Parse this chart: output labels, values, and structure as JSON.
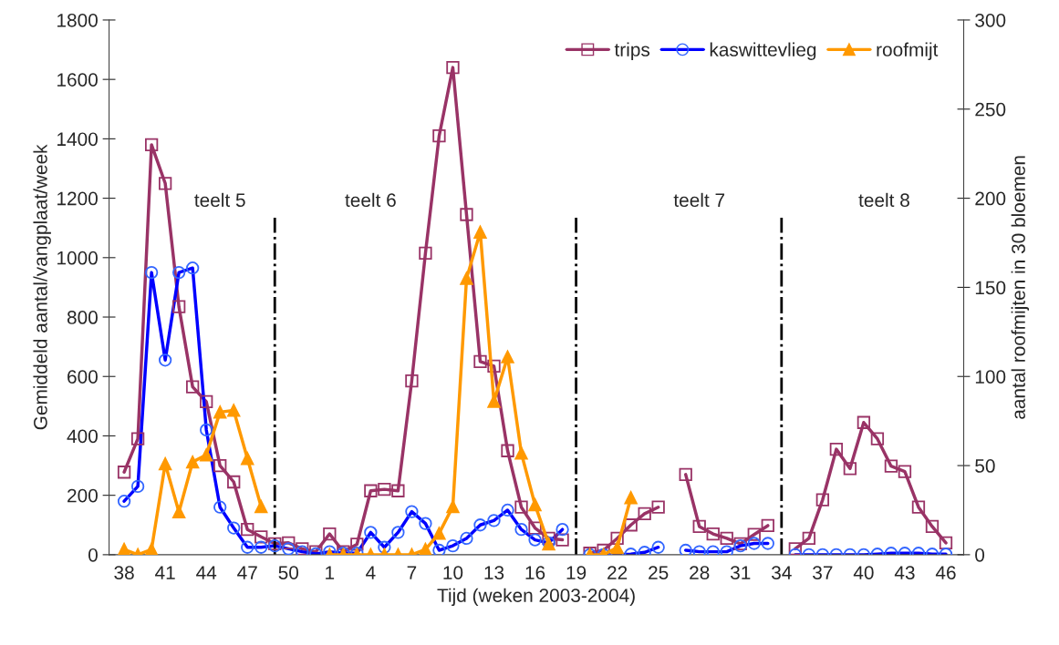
{
  "chart_data": {
    "type": "line",
    "xlabel": "Tijd (weken 2003-2004)",
    "ylabel": "Gemiddeld aantal/vangplaat/week",
    "y2label": "aantal roofmijten in 30 bloemen",
    "categories": [
      "38",
      null,
      null,
      "41",
      null,
      null,
      "44",
      null,
      null,
      "47",
      null,
      null,
      "50",
      null,
      null,
      "1",
      null,
      null,
      "4",
      null,
      null,
      "7",
      null,
      null,
      "10",
      null,
      null,
      "13",
      null,
      null,
      "16",
      null,
      null,
      "19",
      null,
      null,
      "22",
      null,
      null,
      "25",
      null,
      null,
      "28",
      null,
      null,
      "31",
      null,
      null,
      "34",
      null,
      null,
      "37",
      null,
      null,
      "40",
      null,
      null,
      "43",
      null,
      null,
      "46"
    ],
    "ylim": [
      0,
      1800
    ],
    "yticks": [
      0,
      200,
      400,
      600,
      800,
      1000,
      1200,
      1400,
      1600,
      1800
    ],
    "y2lim": [
      0,
      300
    ],
    "y2ticks": [
      0,
      50,
      100,
      150,
      200,
      250,
      300
    ],
    "legend": "top right",
    "grid": false,
    "series": [
      {
        "name": "trips",
        "color": "#993366",
        "marker": "square",
        "values": [
          278,
          390,
          1380,
          1250,
          835,
          565,
          515,
          300,
          245,
          85,
          60,
          37,
          40,
          20,
          10,
          70,
          10,
          35,
          215,
          220,
          215,
          585,
          1015,
          1410,
          1640,
          1145,
          650,
          635,
          350,
          160,
          90,
          55,
          50,
          null,
          5,
          15,
          55,
          100,
          138,
          160,
          null,
          270,
          95,
          70,
          55,
          37,
          68,
          98,
          null,
          20,
          55,
          185,
          355,
          290,
          445,
          390,
          298,
          280,
          160,
          95,
          40
        ]
      },
      {
        "name": "kaswittevlieg",
        "color": "#0000ff",
        "marker": "circle",
        "values": [
          180,
          230,
          950,
          655,
          950,
          965,
          420,
          160,
          90,
          25,
          25,
          30,
          20,
          10,
          3,
          10,
          5,
          5,
          75,
          25,
          75,
          145,
          105,
          15,
          30,
          55,
          100,
          115,
          150,
          85,
          50,
          40,
          85,
          null,
          0,
          0,
          0,
          2,
          8,
          25,
          null,
          15,
          10,
          10,
          10,
          30,
          38,
          38,
          null,
          0,
          0,
          0,
          0,
          0,
          0,
          2,
          5,
          5,
          5,
          2,
          2
        ]
      },
      {
        "name": "roofmijt",
        "color": "#ff9900",
        "marker": "triangle",
        "axis": "y2",
        "values": [
          3,
          0,
          3,
          51,
          24,
          52,
          56,
          80,
          81,
          54,
          27,
          null,
          null,
          null,
          null,
          0,
          0,
          0,
          0,
          0,
          0,
          0,
          3,
          12,
          27,
          155,
          181,
          86,
          111,
          57,
          28,
          6,
          null,
          null,
          0,
          0,
          4,
          32,
          null,
          null,
          null,
          null,
          null,
          null,
          null,
          null,
          null,
          null,
          null,
          null,
          null,
          null,
          null,
          null,
          null,
          null,
          null,
          null,
          null,
          null,
          null
        ]
      }
    ],
    "annotations": [
      "teelt 5",
      "teelt 6",
      "teelt 7",
      "teelt 8"
    ]
  }
}
